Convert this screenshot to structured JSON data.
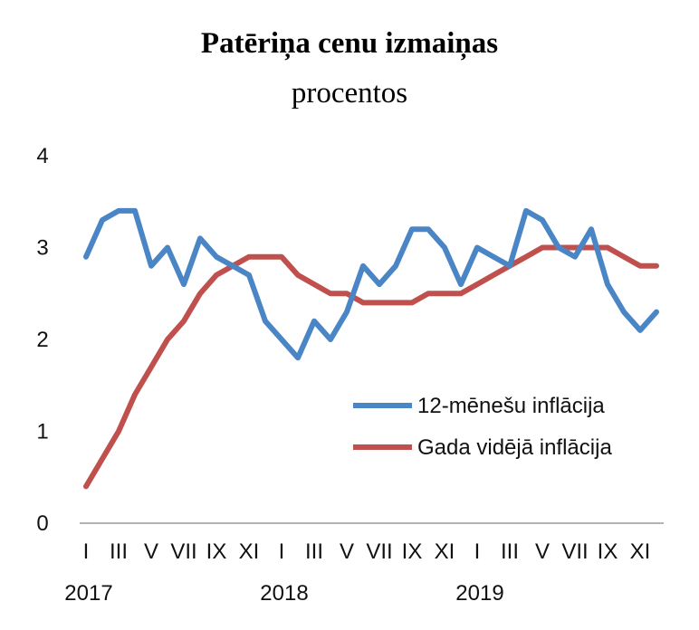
{
  "chart_data": {
    "type": "line",
    "title": "Patēriņa cenu izmaiņas",
    "subtitle": "procentos",
    "xlabel": "",
    "ylabel": "",
    "ylim": [
      0,
      4
    ],
    "yticks": [
      "0",
      "1",
      "2",
      "3",
      "4"
    ],
    "x_tick_labels": [
      "I",
      "III",
      "V",
      "VII",
      "IX",
      "XI",
      "I",
      "III",
      "V",
      "VII",
      "IX",
      "XI",
      "I",
      "III",
      "V",
      "VII",
      "IX",
      "XI"
    ],
    "year_labels": [
      "2017",
      "2018",
      "2019"
    ],
    "x": [
      "2017-01",
      "2017-02",
      "2017-03",
      "2017-04",
      "2017-05",
      "2017-06",
      "2017-07",
      "2017-08",
      "2017-09",
      "2017-10",
      "2017-11",
      "2017-12",
      "2018-01",
      "2018-02",
      "2018-03",
      "2018-04",
      "2018-05",
      "2018-06",
      "2018-07",
      "2018-08",
      "2018-09",
      "2018-10",
      "2018-11",
      "2018-12",
      "2019-01",
      "2019-02",
      "2019-03",
      "2019-04",
      "2019-05",
      "2019-06",
      "2019-07",
      "2019-08",
      "2019-09",
      "2019-10",
      "2019-11",
      "2019-12"
    ],
    "grid": false,
    "legend_position": "right",
    "series": [
      {
        "name": "12-mēnešu inflācija",
        "color": "#4a86c5",
        "values": [
          2.9,
          3.3,
          3.4,
          3.4,
          2.8,
          3.0,
          2.6,
          3.1,
          2.9,
          2.8,
          2.7,
          2.2,
          2.0,
          1.8,
          2.2,
          2.0,
          2.3,
          2.8,
          2.6,
          2.8,
          3.2,
          3.2,
          3.0,
          2.6,
          3.0,
          2.9,
          2.8,
          3.4,
          3.3,
          3.0,
          2.9,
          3.2,
          2.6,
          2.3,
          2.1,
          2.3
        ]
      },
      {
        "name": "Gada vidējā inflācija",
        "color": "#c0504d",
        "values": [
          0.4,
          0.7,
          1.0,
          1.4,
          1.7,
          2.0,
          2.2,
          2.5,
          2.7,
          2.8,
          2.9,
          2.9,
          2.9,
          2.7,
          2.6,
          2.5,
          2.5,
          2.4,
          2.4,
          2.4,
          2.4,
          2.5,
          2.5,
          2.5,
          2.6,
          2.7,
          2.8,
          2.9,
          3.0,
          3.0,
          3.0,
          3.0,
          3.0,
          2.9,
          2.8,
          2.8
        ]
      }
    ]
  }
}
